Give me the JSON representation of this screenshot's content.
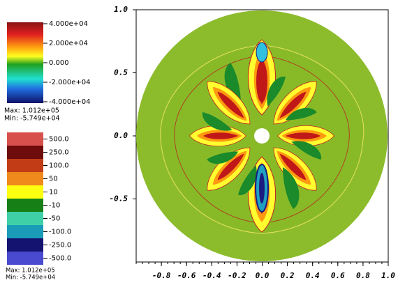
{
  "chart_data": {
    "type": "pseudocolor",
    "xlim": [
      -1.0,
      1.0
    ],
    "ylim": [
      -1.0,
      1.0
    ],
    "xticks": [
      -0.8,
      -0.6,
      -0.4,
      -0.2,
      {
        "value": 0,
        "label": "0.0"
      },
      0.2,
      0.4,
      0.6,
      0.8,
      {
        "value": 1,
        "label": "1.0"
      }
    ],
    "yticks": [
      {
        "value": 1,
        "label": "1.0"
      },
      0.5,
      {
        "value": 0,
        "label": "0.0"
      },
      -0.5
    ]
  },
  "legends": [
    {
      "labels": [
        {
          "value": 40000,
          "label": "4.000e+04"
        },
        {
          "value": 20000,
          "label": "2.000e+04"
        },
        {
          "value": 0,
          "label": "0.000"
        },
        {
          "value": -20000,
          "label": "-2.000e+04"
        },
        {
          "value": -40000,
          "label": "-4.000e+04"
        }
      ],
      "max": "Max: 1.012e+05",
      "min": "Min: -5.749e+04"
    },
    {
      "labels": [
        {
          "value": 500,
          "label": "500.0"
        },
        {
          "value": 250,
          "label": "250.0"
        },
        {
          "value": 100,
          "label": "100.0"
        },
        50,
        10,
        -10,
        -50,
        {
          "value": -100,
          "label": "-100.0"
        },
        {
          "value": -250,
          "label": "-250.0"
        },
        {
          "value": -500,
          "label": "-500.0"
        }
      ],
      "colors": [
        "#d8504c",
        "#6e0b0b",
        "#c23d16",
        "#f08a1c",
        "#ffff10",
        "#168016",
        "#40d0a8",
        "#1a9cb8",
        "#141470",
        "#4a4ad0"
      ],
      "max": "Max: 1.012e+05",
      "min": "Min: -5.749e+04"
    }
  ]
}
